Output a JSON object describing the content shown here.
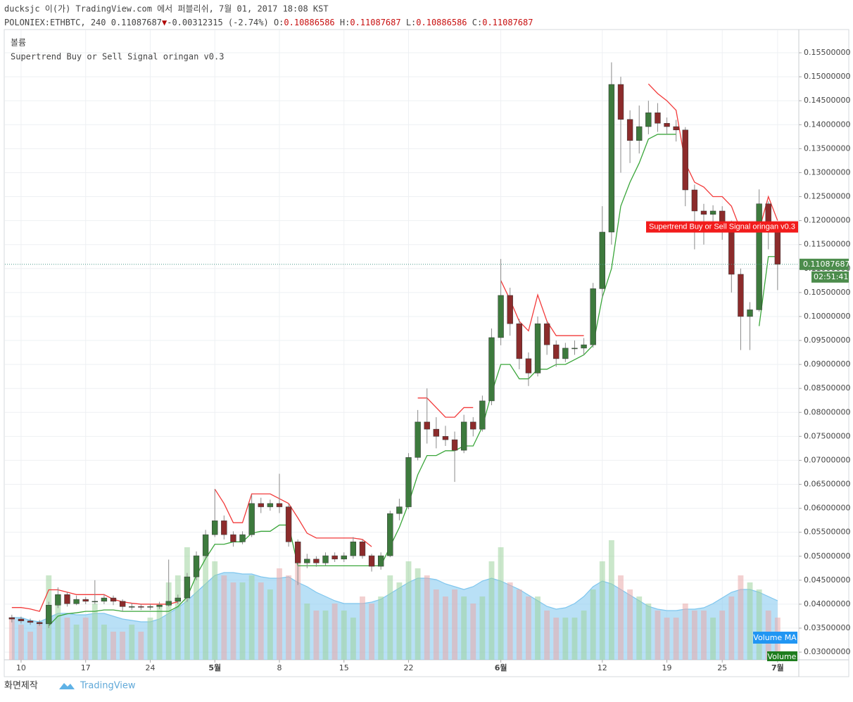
{
  "header": {
    "line1": "ducksjc 이(가) TradingView.com 에서 퍼블리쉬, 7월 01, 2017 18:08 KST",
    "symbol": "POLONIEX:ETHBTC, 240",
    "price": "0.11087687",
    "arrow": "▼",
    "change": "-0.00312315 (-2.74%)",
    "o_label": "O:",
    "o": "0.10886586",
    "h_label": "H:",
    "h": "0.11087687",
    "l_label": "L:",
    "l": "0.10886586",
    "c_label": "C:",
    "c": "0.11087687"
  },
  "chart_data": {
    "type": "candlestick",
    "grid": true,
    "up_color": "#3d7a3d",
    "down_color": "#8c2b2b",
    "wick_color": "#8a8a8a",
    "volume_title": "볼륨",
    "x": [
      9,
      10,
      11,
      12,
      13,
      14,
      15,
      16,
      17,
      18,
      19,
      20,
      21,
      22,
      23,
      24,
      25,
      26,
      27,
      28,
      29,
      30,
      31,
      32,
      33,
      34,
      35,
      36,
      37,
      38,
      39,
      40,
      41,
      42,
      43,
      44,
      45,
      46,
      47,
      48,
      49,
      50,
      51,
      52,
      53,
      54,
      55,
      56,
      57,
      58,
      59,
      60,
      61,
      62,
      63,
      64,
      65,
      66,
      67,
      68,
      69,
      70,
      71,
      72,
      73,
      74,
      75,
      76,
      77,
      78,
      79,
      80,
      81,
      82,
      83,
      84,
      85,
      86,
      87,
      88,
      89,
      90,
      91,
      92
    ],
    "xlim": [
      8.25,
      94.3
    ],
    "xticks": [
      {
        "value": 10,
        "label": "10"
      },
      {
        "value": 17,
        "label": "17"
      },
      {
        "value": 24,
        "label": "24"
      },
      {
        "value": 31,
        "label": "5월"
      },
      {
        "value": 38,
        "label": "8"
      },
      {
        "value": 45,
        "label": "15"
      },
      {
        "value": 52,
        "label": "22"
      },
      {
        "value": 62,
        "label": "6월"
      },
      {
        "value": 73,
        "label": "12"
      },
      {
        "value": 80,
        "label": "19"
      },
      {
        "value": 86,
        "label": "25"
      },
      {
        "value": 92,
        "label": "7월"
      }
    ],
    "open": [
      0.0372,
      0.0369,
      0.0365,
      0.0362,
      0.0359,
      0.0398,
      0.042,
      0.0401,
      0.041,
      0.0406,
      0.0406,
      0.0413,
      0.0406,
      0.0395,
      0.0395,
      0.0394,
      0.0395,
      0.0398,
      0.0406,
      0.0413,
      0.0457,
      0.0501,
      0.0545,
      0.0574,
      0.0545,
      0.053,
      0.0545,
      0.061,
      0.0603,
      0.061,
      0.0603,
      0.053,
      0.0486,
      0.0494,
      0.0486,
      0.0501,
      0.0494,
      0.0501,
      0.053,
      0.0501,
      0.0479,
      0.0501,
      0.0589,
      0.0603,
      0.0706,
      0.078,
      0.0765,
      0.075,
      0.0743,
      0.0721,
      0.078,
      0.0765,
      0.0824,
      0.0956,
      0.1044,
      0.0985,
      0.0912,
      0.0882,
      0.0985,
      0.0941,
      0.0912,
      0.0934,
      0.0934,
      0.0941,
      0.1058,
      0.1176,
      0.1484,
      0.1411,
      0.1367,
      0.1396,
      0.1425,
      0.1403,
      0.1396,
      0.1389,
      0.1264,
      0.122,
      0.1213,
      0.122,
      0.1191,
      0.1088,
      0.1,
      0.1014,
      0.1235,
      0.1176
    ],
    "high": [
      0.0378,
      0.0374,
      0.037,
      0.0367,
      0.0405,
      0.0435,
      0.0425,
      0.0418,
      0.0415,
      0.045,
      0.042,
      0.0418,
      0.041,
      0.0402,
      0.04,
      0.04,
      0.0405,
      0.0493,
      0.042,
      0.0465,
      0.051,
      0.0555,
      0.064,
      0.0585,
      0.0552,
      0.0552,
      0.0628,
      0.0622,
      0.0618,
      0.0672,
      0.061,
      0.0535,
      0.0505,
      0.05,
      0.0508,
      0.0508,
      0.0508,
      0.054,
      0.0535,
      0.0505,
      0.0508,
      0.0595,
      0.062,
      0.0715,
      0.0805,
      0.085,
      0.079,
      0.0772,
      0.076,
      0.0795,
      0.079,
      0.0835,
      0.0975,
      0.112,
      0.106,
      0.0995,
      0.0925,
      0.1,
      0.099,
      0.095,
      0.0945,
      0.095,
      0.0955,
      0.107,
      0.123,
      0.153,
      0.15,
      0.143,
      0.144,
      0.145,
      0.1445,
      0.1415,
      0.141,
      0.1395,
      0.1275,
      0.1235,
      0.1232,
      0.123,
      0.12,
      0.11,
      0.103,
      0.1265,
      0.124,
      0.1195
    ],
    "low": [
      0.0362,
      0.036,
      0.0357,
      0.0355,
      0.035,
      0.0392,
      0.0395,
      0.0398,
      0.04,
      0.04,
      0.04,
      0.0398,
      0.0385,
      0.0388,
      0.0388,
      0.0388,
      0.039,
      0.0395,
      0.04,
      0.0405,
      0.045,
      0.0495,
      0.054,
      0.0535,
      0.052,
      0.0525,
      0.054,
      0.059,
      0.0595,
      0.059,
      0.052,
      0.044,
      0.0475,
      0.0478,
      0.048,
      0.0488,
      0.0488,
      0.0495,
      0.0495,
      0.0468,
      0.0472,
      0.0498,
      0.0575,
      0.0598,
      0.07,
      0.0735,
      0.0725,
      0.073,
      0.0655,
      0.0715,
      0.075,
      0.076,
      0.0815,
      0.094,
      0.096,
      0.089,
      0.0855,
      0.0875,
      0.092,
      0.0895,
      0.0905,
      0.092,
      0.092,
      0.0935,
      0.104,
      0.115,
      0.13,
      0.132,
      0.134,
      0.138,
      0.1385,
      0.138,
      0.1365,
      0.123,
      0.114,
      0.115,
      0.119,
      0.116,
      0.105,
      0.093,
      0.093,
      0.101,
      0.114,
      0.1055
    ],
    "close": [
      0.0369,
      0.0365,
      0.0362,
      0.0359,
      0.0398,
      0.042,
      0.0401,
      0.041,
      0.0406,
      0.0406,
      0.0413,
      0.0406,
      0.0395,
      0.0395,
      0.0394,
      0.0395,
      0.0398,
      0.0406,
      0.0413,
      0.0457,
      0.0501,
      0.0545,
      0.0574,
      0.0545,
      0.053,
      0.0545,
      0.061,
      0.0603,
      0.061,
      0.0603,
      0.053,
      0.0486,
      0.0494,
      0.0486,
      0.0501,
      0.0494,
      0.0501,
      0.053,
      0.0501,
      0.0479,
      0.0501,
      0.0589,
      0.0603,
      0.0706,
      0.078,
      0.0765,
      0.075,
      0.0743,
      0.0721,
      0.078,
      0.0765,
      0.0824,
      0.0956,
      0.1044,
      0.0985,
      0.0912,
      0.0882,
      0.0985,
      0.0941,
      0.0912,
      0.0934,
      0.0934,
      0.0941,
      0.1058,
      0.1176,
      0.1484,
      0.1411,
      0.1367,
      0.1396,
      0.1425,
      0.1403,
      0.1396,
      0.1389,
      0.1264,
      0.122,
      0.1213,
      0.122,
      0.1191,
      0.1088,
      0.1,
      0.1014,
      0.1235,
      0.1176,
      0.11087687
    ],
    "ylim": [
      0.0284,
      0.1597
    ],
    "yticks": [
      {
        "value": 0.03,
        "label": "0.03000000"
      },
      {
        "value": 0.035,
        "label": "0.03500000"
      },
      {
        "value": 0.04,
        "label": "0.04000000"
      },
      {
        "value": 0.045,
        "label": "0.04500000"
      },
      {
        "value": 0.05,
        "label": "0.05000000"
      },
      {
        "value": 0.055,
        "label": "0.05500000"
      },
      {
        "value": 0.06,
        "label": "0.06000000"
      },
      {
        "value": 0.065,
        "label": "0.06500000"
      },
      {
        "value": 0.07,
        "label": "0.07000000"
      },
      {
        "value": 0.075,
        "label": "0.07500000"
      },
      {
        "value": 0.08,
        "label": "0.08000000"
      },
      {
        "value": 0.085,
        "label": "0.08500000"
      },
      {
        "value": 0.09,
        "label": "0.09000000"
      },
      {
        "value": 0.095,
        "label": "0.09500000"
      },
      {
        "value": 0.1,
        "label": "0.10000000"
      },
      {
        "value": 0.105,
        "label": "0.10500000"
      },
      {
        "value": 0.11,
        "label": "0.11000000"
      },
      {
        "value": 0.115,
        "label": "0.11500000"
      },
      {
        "value": 0.12,
        "label": "0.12000000"
      },
      {
        "value": 0.125,
        "label": "0.12500000"
      },
      {
        "value": 0.13,
        "label": "0.13000000"
      },
      {
        "value": 0.135,
        "label": "0.13500000"
      },
      {
        "value": 0.14,
        "label": "0.14000000"
      },
      {
        "value": 0.145,
        "label": "0.14500000"
      },
      {
        "value": 0.15,
        "label": "0.15000000"
      },
      {
        "value": 0.155,
        "label": "0.15500000"
      }
    ],
    "series": [
      {
        "name": "Supertrend Buy or Sell Signal oringan v0.3",
        "color": "#f23a3a",
        "values": [
          0.0393,
          0.0393,
          0.039,
          0.0385,
          0.043,
          0.043,
          0.0425,
          0.042,
          0.042,
          0.042,
          0.042,
          0.041,
          0.0405,
          0.0402,
          0.04,
          0.04,
          0.04,
          0.04,
          0.0405,
          null,
          null,
          null,
          0.064,
          0.061,
          0.057,
          0.057,
          0.063,
          0.063,
          0.063,
          0.062,
          0.061,
          0.058,
          0.0548,
          0.0538,
          0.0538,
          0.0538,
          0.0538,
          0.0538,
          0.0535,
          0.052,
          null,
          null,
          null,
          null,
          0.083,
          0.083,
          0.081,
          0.079,
          0.079,
          0.081,
          0.081,
          null,
          null,
          0.1075,
          0.1035,
          0.099,
          0.097,
          0.1045,
          0.099,
          0.096,
          0.096,
          0.096,
          0.096,
          null,
          null,
          null,
          null,
          null,
          null,
          0.1485,
          0.1465,
          0.145,
          0.143,
          0.132,
          0.128,
          0.127,
          0.125,
          0.125,
          0.123,
          0.118,
          0.118,
          0.118,
          0.125,
          0.12
        ]
      },
      {
        "color": "#3aa63a",
        "values": [
          null,
          null,
          null,
          null,
          0.0355,
          0.0375,
          0.038,
          0.0382,
          0.0385,
          0.0385,
          0.0388,
          0.0388,
          0.0385,
          0.0385,
          0.0385,
          0.0385,
          0.0385,
          0.0385,
          0.0395,
          0.0415,
          0.046,
          0.0495,
          0.0525,
          0.0525,
          0.053,
          0.053,
          0.0548,
          0.0552,
          0.0552,
          0.0565,
          0.0565,
          0.048,
          0.048,
          0.048,
          0.048,
          0.048,
          0.048,
          0.048,
          0.048,
          0.048,
          0.048,
          0.052,
          0.056,
          0.061,
          0.067,
          0.071,
          0.071,
          0.072,
          0.072,
          0.073,
          0.073,
          0.077,
          0.084,
          0.09,
          0.09,
          0.087,
          0.087,
          0.089,
          0.089,
          0.09,
          0.09,
          0.091,
          0.092,
          0.094,
          0.104,
          0.11,
          0.123,
          0.128,
          0.132,
          0.137,
          0.138,
          0.138,
          0.138,
          null,
          null,
          null,
          null,
          null,
          null,
          null,
          null,
          0.098,
          0.1125,
          0.1125
        ]
      }
    ],
    "volume": {
      "name": "Volume",
      "ma_name": "Volume MA",
      "ylim": [
        0,
        100
      ],
      "color": "#7fc6ee",
      "values": [
        30,
        25,
        20,
        25,
        60,
        45,
        30,
        25,
        30,
        40,
        25,
        20,
        20,
        25,
        20,
        30,
        40,
        55,
        60,
        80,
        70,
        75,
        70,
        60,
        55,
        55,
        60,
        55,
        50,
        65,
        60,
        70,
        40,
        35,
        35,
        40,
        35,
        30,
        45,
        40,
        45,
        60,
        55,
        70,
        65,
        60,
        50,
        45,
        50,
        45,
        40,
        45,
        70,
        80,
        55,
        50,
        45,
        45,
        35,
        30,
        30,
        30,
        35,
        50,
        70,
        85,
        60,
        50,
        45,
        40,
        35,
        30,
        30,
        40,
        35,
        35,
        30,
        35,
        45,
        60,
        55,
        50,
        35,
        30
      ],
      "ma_values": [
        30,
        30,
        28,
        27,
        30,
        33,
        33,
        32,
        32,
        33,
        33,
        31,
        29,
        28,
        27,
        27,
        29,
        33,
        37,
        42,
        48,
        54,
        60,
        62,
        62,
        61,
        61,
        59,
        58,
        58,
        59,
        55,
        52,
        48,
        45,
        42,
        40,
        40,
        40,
        41,
        43,
        47,
        51,
        55,
        58,
        58,
        57,
        54,
        52,
        50,
        52,
        56,
        58,
        56,
        53,
        50,
        46,
        42,
        38,
        36,
        37,
        40,
        45,
        52,
        56,
        54,
        50,
        46,
        42,
        38,
        36,
        35,
        35,
        36,
        36,
        37,
        40,
        44,
        48,
        50,
        50,
        48,
        45,
        42
      ]
    },
    "last_price": 0.11087687,
    "countdown": "02:51:41"
  },
  "footer": {
    "made_by": "화면제작",
    "brand": "TradingView"
  }
}
